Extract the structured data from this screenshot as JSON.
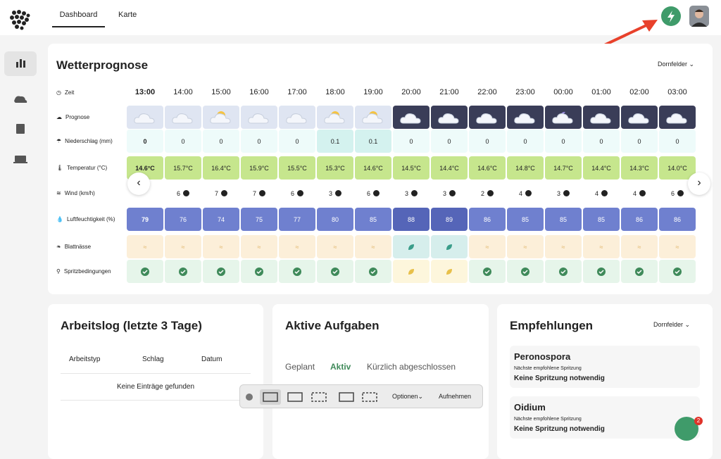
{
  "nav": {
    "tabs": [
      "Dashboard",
      "Karte"
    ]
  },
  "forecast": {
    "title": "Wetterprognose",
    "selector": "Dornfelder",
    "row_labels": [
      "Zeit",
      "Prognose",
      "Niederschlag (mm)",
      "Temperatur (°C)",
      "Wind (km/h)",
      "Luftfeuchtigkeit (%)",
      "Blattnässe",
      "Spritzbedingungen"
    ],
    "times": [
      "13:00",
      "14:00",
      "15:00",
      "16:00",
      "17:00",
      "18:00",
      "19:00",
      "20:00",
      "21:00",
      "22:00",
      "23:00",
      "00:00",
      "01:00",
      "02:00",
      "03:00"
    ],
    "precipitation": [
      "0",
      "0",
      "0",
      "0",
      "0",
      "0.1",
      "0.1",
      "0",
      "0",
      "0",
      "0",
      "0",
      "0",
      "0",
      "0"
    ],
    "temperature": [
      "14.6°C",
      "15.7°C",
      "16.4°C",
      "15.9°C",
      "15.5°C",
      "15.3°C",
      "14.6°C",
      "14.5°C",
      "14.4°C",
      "14.6°C",
      "14.8°C",
      "14.7°C",
      "14.4°C",
      "14.3°C",
      "14.0°C"
    ],
    "wind": [
      null,
      "6",
      "7",
      "7",
      "6",
      "3",
      "6",
      "3",
      "3",
      "2",
      "4",
      "3",
      "4",
      "4",
      "6"
    ],
    "humidity": [
      "79",
      "76",
      "74",
      "75",
      "77",
      "80",
      "85",
      "88",
      "89",
      "86",
      "85",
      "85",
      "85",
      "86",
      "86"
    ]
  },
  "worklog": {
    "title": "Arbeitslog (letzte 3 Tage)",
    "columns": [
      "Arbeitstyp",
      "Schlag",
      "Datum"
    ],
    "empty": "Keine Einträge gefunden"
  },
  "tasks": {
    "title": "Aktive Aufgaben",
    "tabs": [
      "Geplant",
      "Aktiv",
      "Kürzlich abgeschlossen"
    ]
  },
  "recommendations": {
    "title": "Empfehlungen",
    "selector": "Dornfelder",
    "cards": [
      {
        "name": "Peronospora",
        "label": "Nächste empfohlene Spritzung",
        "value": "Keine Spritzung notwendig"
      },
      {
        "name": "Oidium",
        "label": "Nächste empfohlene Spritzung",
        "value": "Keine Spritzung notwendig"
      }
    ]
  },
  "toolbar": {
    "options": "Optionen",
    "record": "Aufnehmen"
  },
  "chat": {
    "badge": "2"
  }
}
